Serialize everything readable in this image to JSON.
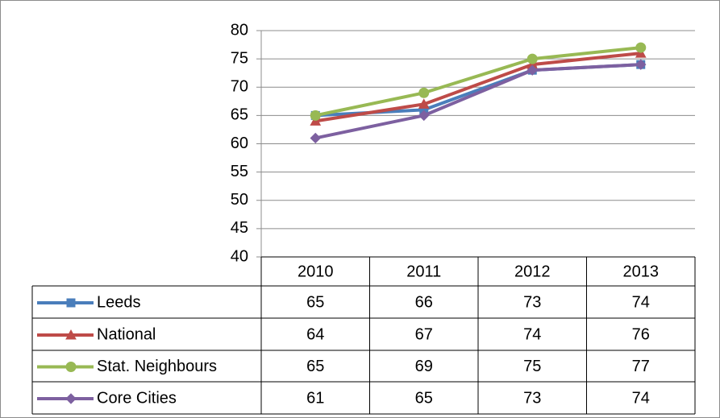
{
  "chart_data": {
    "type": "line",
    "categories": [
      "2010",
      "2011",
      "2012",
      "2013"
    ],
    "series": [
      {
        "name": "Leeds",
        "color": "#4a7ebb",
        "marker": "square",
        "values": [
          65,
          66,
          73,
          74
        ]
      },
      {
        "name": "National",
        "color": "#be4b48",
        "marker": "triangle",
        "values": [
          64,
          67,
          74,
          76
        ]
      },
      {
        "name": "Stat. Neighbours",
        "color": "#98b954",
        "marker": "circle",
        "values": [
          65,
          69,
          75,
          77
        ]
      },
      {
        "name": "Core Cities",
        "color": "#7d60a0",
        "marker": "diamond",
        "values": [
          61,
          65,
          73,
          74
        ]
      }
    ],
    "ylim": [
      40,
      80
    ],
    "yticks": [
      40,
      45,
      50,
      55,
      60,
      65,
      70,
      75,
      80
    ],
    "grid": true,
    "data_table": true
  }
}
